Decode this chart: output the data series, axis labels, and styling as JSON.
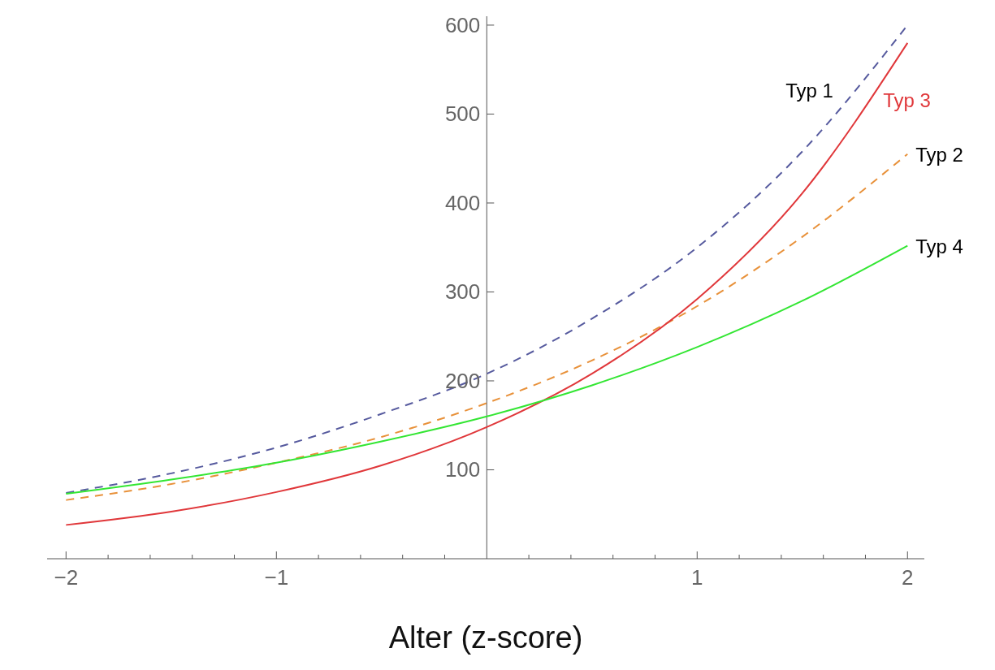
{
  "chart_data": {
    "type": "line",
    "xlabel": "Alter (z-score)",
    "x": [
      -2,
      -1.5,
      -1,
      -0.5,
      0,
      0.5,
      1,
      1.5,
      2
    ],
    "series": [
      {
        "name": "Typ 1",
        "color": "#565a9e",
        "line_style": "dashed",
        "values": [
          74,
          96,
          125,
          163,
          208,
          270,
          350,
          458,
          600
        ]
      },
      {
        "name": "Typ 2",
        "color": "#e8913a",
        "line_style": "dashed",
        "values": [
          66,
          84,
          108,
          137,
          175,
          223,
          284,
          362,
          455
        ]
      },
      {
        "name": "Typ 3",
        "color": "#e0373a",
        "line_style": "solid",
        "values": [
          38,
          53,
          75,
          105,
          148,
          208,
          292,
          411,
          580
        ]
      },
      {
        "name": "Typ 4",
        "color": "#33e633",
        "line_style": "solid",
        "values": [
          73,
          89,
          108,
          132,
          160,
          195,
          238,
          290,
          352
        ]
      }
    ],
    "xlim": [
      -2.09,
      2.08
    ],
    "ylim": [
      0,
      610
    ],
    "xticks": [
      -2,
      {
        "value": -1.8,
        "label": null
      },
      {
        "value": -1.6,
        "label": null
      },
      {
        "value": -1.4,
        "label": null
      },
      {
        "value": -1.2,
        "label": null
      },
      -1,
      {
        "value": -0.8,
        "label": null
      },
      {
        "value": -0.6,
        "label": null
      },
      {
        "value": -0.4,
        "label": null
      },
      {
        "value": -0.2,
        "label": null
      },
      {
        "value": 0.2,
        "label": null
      },
      {
        "value": 0.4,
        "label": null
      },
      {
        "value": 0.6,
        "label": null
      },
      {
        "value": 0.8,
        "label": null
      },
      1,
      {
        "value": 1.2,
        "label": null
      },
      {
        "value": 1.4,
        "label": null
      },
      {
        "value": 1.6,
        "label": null
      },
      {
        "value": 1.8,
        "label": null
      },
      2
    ],
    "yticks": [
      100,
      200,
      300,
      400,
      500,
      600
    ],
    "marker": "none",
    "grid": false
  }
}
